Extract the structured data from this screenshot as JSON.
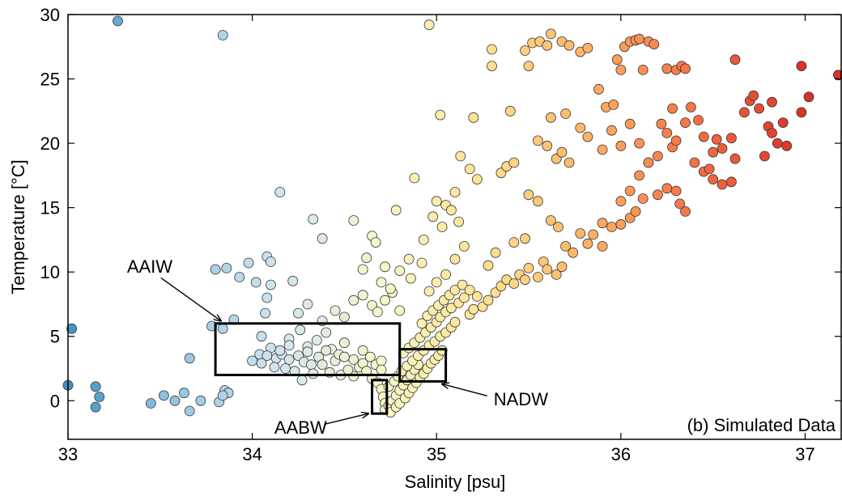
{
  "chart_data": {
    "type": "scatter",
    "title": "",
    "xlabel": "Salinity [psu]",
    "ylabel": "Temperature [°C]",
    "xlim": [
      33,
      37.2
    ],
    "ylim": [
      -3,
      30
    ],
    "x_ticks": [
      33,
      34,
      35,
      36,
      37
    ],
    "y_ticks": [
      0,
      5,
      10,
      15,
      20,
      25,
      30
    ],
    "x_tick_labels": [
      "33",
      "34",
      "35",
      "36",
      "37"
    ],
    "y_tick_labels": [
      "0",
      "5",
      "10",
      "15",
      "20",
      "25",
      "30"
    ],
    "grid": false,
    "colormap": [
      "#4393c3",
      "#92c5de",
      "#d1e5f0",
      "#f7f7c8",
      "#fee090",
      "#fdae61",
      "#f46d43",
      "#d73027"
    ],
    "color_range": [
      33,
      37
    ],
    "panel_label": "(b) Simulated Data",
    "annotations": [
      {
        "text": "AAIW",
        "x": 33.32,
        "y": 10.3,
        "arrow_to": [
          33.83,
          6.2
        ]
      },
      {
        "text": "NADW",
        "x": 35.31,
        "y": 0.0,
        "arrow_to": [
          35.03,
          1.3
        ]
      },
      {
        "text": "AABW",
        "x": 34.12,
        "y": -2.2,
        "arrow_to": [
          34.63,
          -1.0
        ]
      }
    ],
    "regions": [
      {
        "name": "AAIW",
        "x": [
          33.8,
          34.8
        ],
        "y": [
          2,
          6
        ]
      },
      {
        "name": "NADW",
        "x": [
          34.8,
          35.05
        ],
        "y": [
          1.5,
          4
        ]
      },
      {
        "name": "AABW",
        "x": [
          34.65,
          34.73
        ],
        "y": [
          -1,
          1.6
        ]
      }
    ],
    "points": [
      [
        33.27,
        29.5
      ],
      [
        33.84,
        28.4
      ],
      [
        34.96,
        29.2
      ],
      [
        33.02,
        5.6
      ],
      [
        33.0,
        1.2
      ],
      [
        33.15,
        1.1
      ],
      [
        33.17,
        0.3
      ],
      [
        33.15,
        -0.5
      ],
      [
        33.45,
        -0.2
      ],
      [
        33.52,
        0.4
      ],
      [
        33.58,
        0.0
      ],
      [
        33.63,
        0.6
      ],
      [
        33.66,
        -0.8
      ],
      [
        33.72,
        0.0
      ],
      [
        33.66,
        3.3
      ],
      [
        33.82,
        -0.1
      ],
      [
        33.85,
        0.8
      ],
      [
        33.87,
        0.6
      ],
      [
        33.84,
        0.4
      ],
      [
        33.8,
        10.2
      ],
      [
        33.86,
        10.3
      ],
      [
        33.93,
        9.6
      ],
      [
        33.98,
        10.7
      ],
      [
        34.02,
        9.2
      ],
      [
        34.08,
        11.2
      ],
      [
        34.1,
        10.8
      ],
      [
        34.1,
        9.0
      ],
      [
        34.08,
        8.0
      ],
      [
        34.07,
        6.8
      ],
      [
        34.22,
        9.3
      ],
      [
        33.78,
        5.8
      ],
      [
        33.84,
        5.6
      ],
      [
        33.9,
        6.3
      ],
      [
        34.05,
        5.0
      ],
      [
        34.1,
        4.1
      ],
      [
        34.04,
        3.6
      ],
      [
        34.08,
        3.5
      ],
      [
        34.13,
        3.3
      ],
      [
        34.16,
        3.6
      ],
      [
        34.2,
        3.2
      ],
      [
        34.25,
        3.5
      ],
      [
        34.28,
        3.0
      ],
      [
        34.32,
        2.8
      ],
      [
        34.36,
        3.4
      ],
      [
        34.18,
        2.5
      ],
      [
        34.23,
        2.3
      ],
      [
        34.27,
        1.6
      ],
      [
        34.33,
        2.1
      ],
      [
        34.38,
        2.8
      ],
      [
        34.42,
        2.2
      ],
      [
        34.45,
        3.1
      ],
      [
        34.48,
        2.0
      ],
      [
        34.2,
        4.8
      ],
      [
        34.26,
        5.5
      ],
      [
        34.3,
        4.2
      ],
      [
        34.35,
        4.7
      ],
      [
        34.4,
        5.3
      ],
      [
        34.43,
        4.0
      ],
      [
        34.47,
        3.6
      ],
      [
        34.5,
        4.5
      ],
      [
        34.55,
        3.2
      ],
      [
        34.58,
        2.6
      ],
      [
        34.6,
        3.9
      ],
      [
        34.64,
        3.4
      ],
      [
        34.67,
        2.8
      ],
      [
        34.7,
        3.1
      ],
      [
        34.25,
        6.8
      ],
      [
        34.3,
        7.5
      ],
      [
        34.38,
        6.2
      ],
      [
        34.45,
        7.0
      ],
      [
        34.5,
        6.5
      ],
      [
        34.55,
        7.8
      ],
      [
        34.6,
        8.2
      ],
      [
        34.65,
        7.4
      ],
      [
        34.68,
        6.9
      ],
      [
        34.72,
        7.8
      ],
      [
        34.76,
        8.4
      ],
      [
        34.8,
        7.0
      ],
      [
        34.15,
        16.2
      ],
      [
        34.33,
        14.1
      ],
      [
        34.38,
        12.6
      ],
      [
        34.55,
        14.0
      ],
      [
        34.78,
        14.8
      ],
      [
        34.65,
        12.8
      ],
      [
        34.67,
        12.3
      ],
      [
        34.62,
        11.1
      ],
      [
        34.6,
        10.2
      ],
      [
        34.72,
        10.4
      ],
      [
        34.8,
        10.1
      ],
      [
        34.85,
        11.0
      ],
      [
        34.7,
        9.2
      ],
      [
        34.75,
        8.7
      ],
      [
        34.86,
        9.5
      ],
      [
        34.92,
        10.7
      ],
      [
        34.96,
        8.5
      ],
      [
        35.0,
        9.2
      ],
      [
        35.05,
        9.8
      ],
      [
        35.1,
        11.0
      ],
      [
        35.15,
        12.0
      ],
      [
        34.88,
        17.3
      ],
      [
        34.93,
        12.5
      ],
      [
        34.98,
        14.3
      ],
      [
        35.0,
        15.5
      ],
      [
        35.03,
        13.5
      ],
      [
        35.05,
        15.2
      ],
      [
        35.08,
        14.8
      ],
      [
        35.1,
        16.2
      ],
      [
        35.12,
        13.9
      ],
      [
        35.02,
        22.2
      ],
      [
        35.13,
        19.0
      ],
      [
        35.18,
        18.0
      ],
      [
        35.22,
        17.2
      ],
      [
        35.2,
        22.0
      ],
      [
        35.3,
        26.0
      ],
      [
        35.3,
        27.3
      ],
      [
        35.35,
        17.7
      ],
      [
        35.38,
        18.2
      ],
      [
        35.42,
        18.5
      ],
      [
        35.4,
        22.5
      ],
      [
        35.48,
        27.2
      ],
      [
        35.5,
        26.0
      ],
      [
        35.52,
        27.8
      ],
      [
        35.56,
        27.9
      ],
      [
        35.6,
        27.6
      ],
      [
        35.62,
        28.5
      ],
      [
        35.68,
        27.9
      ],
      [
        35.72,
        27.6
      ],
      [
        35.78,
        27.1
      ],
      [
        35.82,
        27.4
      ],
      [
        35.55,
        20.2
      ],
      [
        35.6,
        19.8
      ],
      [
        35.65,
        18.8
      ],
      [
        35.68,
        19.3
      ],
      [
        35.72,
        18.5
      ],
      [
        35.78,
        21.2
      ],
      [
        35.82,
        20.5
      ],
      [
        35.62,
        22.0
      ],
      [
        35.7,
        22.3
      ],
      [
        35.5,
        16.0
      ],
      [
        35.55,
        15.5
      ],
      [
        35.62,
        14.0
      ],
      [
        35.66,
        13.5
      ],
      [
        35.7,
        12.0
      ],
      [
        35.74,
        11.5
      ],
      [
        35.78,
        13.0
      ],
      [
        35.82,
        12.2
      ],
      [
        35.88,
        24.2
      ],
      [
        35.92,
        22.8
      ],
      [
        35.96,
        23.0
      ],
      [
        35.98,
        26.5
      ],
      [
        36.0,
        25.7
      ],
      [
        36.02,
        27.5
      ],
      [
        36.05,
        27.9
      ],
      [
        36.08,
        28.0
      ],
      [
        36.1,
        28.1
      ],
      [
        36.12,
        25.7
      ],
      [
        36.15,
        27.9
      ],
      [
        36.18,
        27.7
      ],
      [
        35.9,
        19.5
      ],
      [
        35.95,
        21.0
      ],
      [
        36.0,
        19.8
      ],
      [
        36.05,
        21.5
      ],
      [
        36.1,
        20.0
      ],
      [
        36.15,
        18.5
      ],
      [
        36.2,
        19.0
      ],
      [
        36.22,
        21.5
      ],
      [
        36.25,
        20.8
      ],
      [
        36.28,
        19.7
      ],
      [
        36.3,
        20.2
      ],
      [
        36.35,
        21.6
      ],
      [
        36.0,
        15.5
      ],
      [
        36.05,
        16.3
      ],
      [
        36.1,
        17.5
      ],
      [
        36.12,
        15.7
      ],
      [
        36.15,
        18.5
      ],
      [
        36.2,
        16.0
      ],
      [
        36.25,
        16.5
      ],
      [
        36.3,
        16.3
      ],
      [
        36.32,
        15.3
      ],
      [
        36.35,
        14.7
      ],
      [
        35.9,
        13.8
      ],
      [
        35.95,
        13.5
      ],
      [
        36.0,
        13.7
      ],
      [
        35.85,
        12.9
      ],
      [
        35.9,
        12.0
      ],
      [
        36.05,
        14.2
      ],
      [
        36.08,
        14.7
      ],
      [
        36.25,
        25.8
      ],
      [
        36.3,
        25.7
      ],
      [
        36.33,
        26.0
      ],
      [
        36.35,
        25.8
      ],
      [
        36.28,
        22.7
      ],
      [
        36.38,
        22.8
      ],
      [
        36.42,
        21.8
      ],
      [
        36.45,
        20.5
      ],
      [
        36.5,
        19.3
      ],
      [
        36.55,
        19.6
      ],
      [
        36.6,
        20.4
      ],
      [
        36.4,
        18.5
      ],
      [
        36.45,
        17.8
      ],
      [
        36.5,
        17.2
      ],
      [
        36.55,
        16.8
      ],
      [
        36.6,
        17.0
      ],
      [
        36.62,
        18.8
      ],
      [
        36.67,
        22.4
      ],
      [
        36.7,
        23.3
      ],
      [
        36.72,
        23.7
      ],
      [
        36.75,
        22.7
      ],
      [
        36.78,
        19.0
      ],
      [
        36.8,
        21.3
      ],
      [
        36.82,
        20.8
      ],
      [
        36.85,
        20.0
      ],
      [
        36.88,
        21.6
      ],
      [
        36.9,
        19.8
      ],
      [
        36.82,
        23.2
      ],
      [
        36.98,
        22.4
      ],
      [
        37.02,
        23.6
      ],
      [
        36.98,
        26.0
      ],
      [
        37.18,
        25.3
      ],
      [
        36.62,
        26.5
      ],
      [
        36.52,
        20.3
      ],
      [
        36.48,
        18.0
      ],
      [
        34.0,
        3.1
      ],
      [
        34.05,
        2.9
      ],
      [
        34.12,
        2.6
      ],
      [
        34.15,
        3.9
      ],
      [
        34.2,
        4.3
      ],
      [
        34.3,
        3.8
      ],
      [
        34.4,
        3.9
      ],
      [
        34.5,
        3.4
      ],
      [
        34.6,
        2.9
      ],
      [
        34.62,
        2.3
      ],
      [
        34.55,
        1.9
      ],
      [
        34.52,
        2.4
      ],
      [
        34.65,
        1.7
      ],
      [
        34.7,
        2.4
      ],
      [
        34.68,
        1.4
      ],
      [
        34.7,
        0.9
      ],
      [
        34.71,
        0.3
      ],
      [
        34.72,
        -0.2
      ],
      [
        34.72,
        -0.7
      ],
      [
        34.74,
        -0.4
      ],
      [
        34.76,
        0.0
      ],
      [
        34.78,
        0.4
      ],
      [
        34.8,
        0.8
      ],
      [
        34.82,
        1.2
      ],
      [
        34.84,
        1.6
      ],
      [
        34.86,
        2.0
      ],
      [
        34.88,
        2.4
      ],
      [
        34.9,
        2.8
      ],
      [
        34.75,
        -0.9
      ],
      [
        34.78,
        -0.5
      ],
      [
        34.8,
        -0.2
      ],
      [
        34.83,
        0.2
      ],
      [
        34.85,
        0.6
      ],
      [
        34.87,
        1.0
      ],
      [
        34.89,
        1.4
      ],
      [
        34.91,
        1.8
      ],
      [
        34.93,
        2.1
      ],
      [
        34.95,
        2.5
      ],
      [
        34.97,
        2.9
      ],
      [
        34.99,
        3.2
      ],
      [
        35.01,
        3.5
      ],
      [
        35.03,
        3.9
      ],
      [
        34.74,
        1.1
      ],
      [
        34.77,
        1.5
      ],
      [
        34.79,
        1.9
      ],
      [
        34.81,
        2.3
      ],
      [
        34.84,
        2.7
      ],
      [
        34.87,
        3.1
      ],
      [
        34.9,
        3.5
      ],
      [
        34.93,
        3.9
      ],
      [
        34.96,
        4.3
      ],
      [
        34.99,
        4.6
      ],
      [
        35.02,
        5.0
      ],
      [
        35.05,
        5.3
      ],
      [
        35.08,
        5.7
      ],
      [
        35.1,
        6.1
      ],
      [
        34.82,
        3.7
      ],
      [
        34.85,
        4.1
      ],
      [
        34.88,
        4.5
      ],
      [
        34.91,
        4.9
      ],
      [
        34.94,
        5.3
      ],
      [
        34.97,
        5.7
      ],
      [
        35.0,
        6.1
      ],
      [
        35.02,
        6.5
      ],
      [
        35.05,
        6.9
      ],
      [
        35.08,
        7.2
      ],
      [
        35.12,
        7.6
      ],
      [
        35.15,
        8.0
      ],
      [
        35.18,
        6.7
      ],
      [
        35.2,
        7.1
      ],
      [
        34.92,
        6.0
      ],
      [
        34.95,
        6.6
      ],
      [
        34.98,
        7.0
      ],
      [
        35.01,
        7.4
      ],
      [
        35.04,
        7.8
      ],
      [
        35.07,
        8.2
      ],
      [
        35.1,
        8.6
      ],
      [
        35.14,
        9.0
      ],
      [
        35.18,
        8.6
      ],
      [
        35.22,
        8.1
      ],
      [
        35.25,
        7.3
      ],
      [
        35.28,
        7.8
      ],
      [
        35.32,
        8.4
      ],
      [
        35.35,
        8.9
      ],
      [
        35.38,
        9.4
      ],
      [
        35.42,
        9.1
      ],
      [
        35.45,
        9.8
      ],
      [
        35.48,
        9.4
      ],
      [
        35.5,
        10.3
      ],
      [
        35.55,
        9.6
      ],
      [
        35.58,
        10.8
      ],
      [
        35.6,
        10.2
      ],
      [
        35.65,
        9.8
      ],
      [
        35.68,
        10.4
      ],
      [
        35.28,
        10.5
      ],
      [
        35.32,
        11.5
      ],
      [
        35.42,
        12.3
      ],
      [
        35.48,
        12.6
      ]
    ]
  }
}
